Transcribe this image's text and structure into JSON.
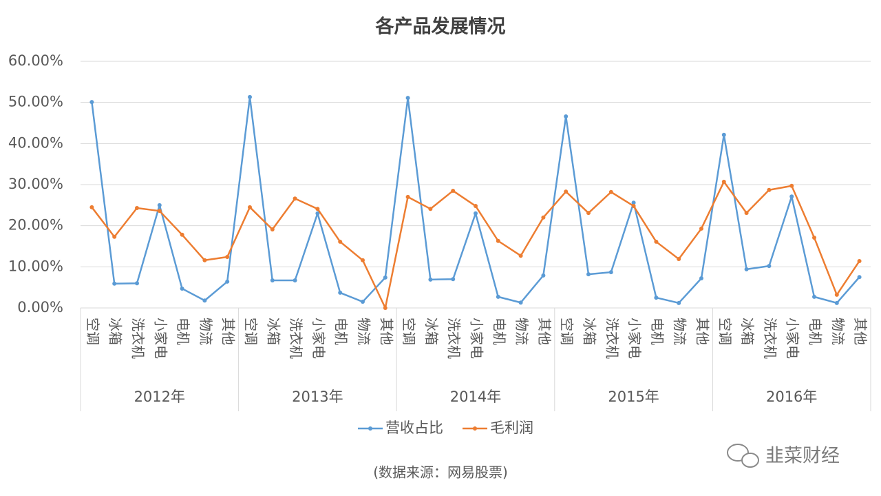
{
  "chart_data": {
    "type": "line",
    "title": "各产品发展情况",
    "groups": [
      {
        "name": "2012年",
        "categories": [
          "空调",
          "冰箱",
          "洗衣机",
          "小家电",
          "电机",
          "物流",
          "其他"
        ]
      },
      {
        "name": "2013年",
        "categories": [
          "空调",
          "冰箱",
          "洗衣机",
          "小家电",
          "电机",
          "物流",
          "其他"
        ]
      },
      {
        "name": "2014年",
        "categories": [
          "空调",
          "冰箱",
          "洗衣机",
          "小家电",
          "电机",
          "物流",
          "其他"
        ]
      },
      {
        "name": "2015年",
        "categories": [
          "空调",
          "冰箱",
          "洗衣机",
          "小家电",
          "电机",
          "物流",
          "其他"
        ]
      },
      {
        "name": "2016年",
        "categories": [
          "空调",
          "冰箱",
          "洗衣机",
          "小家电",
          "电机",
          "物流",
          "其他"
        ]
      }
    ],
    "series": [
      {
        "name": "营收占比",
        "color": "#5b9bd5",
        "values": [
          50.1,
          5.9,
          6.0,
          25.0,
          4.7,
          1.8,
          6.4,
          51.3,
          6.7,
          6.7,
          23.0,
          3.7,
          1.5,
          7.4,
          51.1,
          6.9,
          7.0,
          23.0,
          2.7,
          1.3,
          7.9,
          46.6,
          8.2,
          8.7,
          25.6,
          2.5,
          1.2,
          7.2,
          42.1,
          9.4,
          10.2,
          27.1,
          2.7,
          1.2,
          7.5
        ]
      },
      {
        "name": "毛利润",
        "color": "#ed7d31",
        "values": [
          24.5,
          17.3,
          24.3,
          23.6,
          17.8,
          11.6,
          12.4,
          24.5,
          19.1,
          26.6,
          24.1,
          16.1,
          11.6,
          0,
          27.0,
          24.1,
          28.5,
          24.8,
          16.3,
          12.7,
          22.0,
          28.3,
          23.1,
          28.2,
          24.8,
          16.1,
          11.9,
          19.3,
          30.7,
          23.1,
          28.7,
          29.7,
          17.1,
          3.2,
          11.4
        ]
      }
    ],
    "ylim": [
      0,
      60
    ],
    "yticks": [
      {
        "value": 0,
        "label": "0.00%"
      },
      {
        "value": 10,
        "label": "10.00%"
      },
      {
        "value": 20,
        "label": "20.00%"
      },
      {
        "value": 30,
        "label": "30.00%"
      },
      {
        "value": 40,
        "label": "40.00%"
      },
      {
        "value": 50,
        "label": "50.00%"
      },
      {
        "value": 60,
        "label": "60.00%"
      }
    ],
    "grid": true,
    "legend": "bottom",
    "source": "(数据来源：网易股票)",
    "watermark": "韭菜财经"
  }
}
